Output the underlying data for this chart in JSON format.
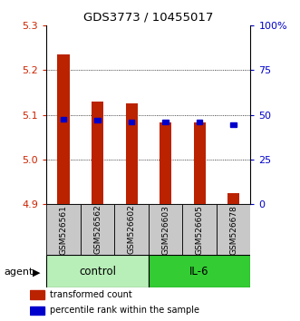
{
  "title": "GDS3773 / 10455017",
  "samples": [
    "GSM526561",
    "GSM526562",
    "GSM526602",
    "GSM526603",
    "GSM526605",
    "GSM526678"
  ],
  "red_bar_top": [
    5.235,
    5.13,
    5.125,
    5.083,
    5.083,
    4.925
  ],
  "red_bar_bottom": 4.9,
  "blue_y": [
    5.085,
    5.082,
    5.078,
    5.078,
    5.078,
    5.073
  ],
  "ylim": [
    4.9,
    5.3
  ],
  "yticks_left": [
    4.9,
    5.0,
    5.1,
    5.2,
    5.3
  ],
  "yticks_right_labels": [
    "0",
    "25",
    "50",
    "75",
    "100%"
  ],
  "groups": [
    {
      "label": "control",
      "samples": [
        0,
        1,
        2
      ],
      "color": "#B8EEB8"
    },
    {
      "label": "IL-6",
      "samples": [
        3,
        4,
        5
      ],
      "color": "#33CC33"
    }
  ],
  "agent_label": "agent",
  "bar_color": "#BB2200",
  "blue_color": "#0000CC",
  "left_tick_color": "#CC2200",
  "right_tick_color": "#0000CC",
  "sample_bg_color": "#C8C8C8",
  "legend_items": [
    {
      "label": "transformed count",
      "color": "#BB2200"
    },
    {
      "label": "percentile rank within the sample",
      "color": "#0000CC"
    }
  ]
}
